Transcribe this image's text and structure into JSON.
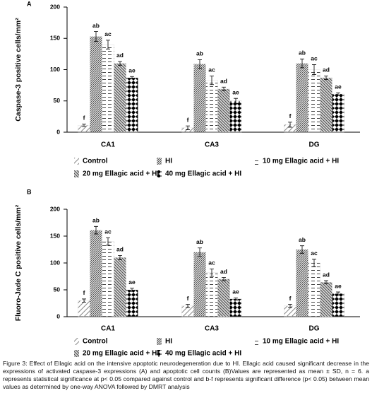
{
  "chart_data": [
    {
      "type": "bar",
      "panel": "A",
      "y_label": "Caspase-3 positive cells/mm²",
      "categories": [
        "CA1",
        "CA3",
        "DG"
      ],
      "ylim": [
        0,
        200
      ],
      "yticks": [
        0,
        50,
        100,
        150,
        200
      ],
      "series": [
        {
          "name": "Control",
          "color": "#888888",
          "pattern": "sparse-diagonal",
          "values": [
            11,
            7,
            12
          ],
          "errors": [
            2,
            3,
            4
          ],
          "labels": [
            "f",
            "f",
            "f"
          ]
        },
        {
          "name": "HI",
          "color": "#444444",
          "pattern": "dense-diagonal",
          "values": [
            153,
            109,
            110
          ],
          "errors": [
            8,
            7,
            7
          ],
          "labels": [
            "ab",
            "ab",
            "ab"
          ]
        },
        {
          "name": "10 mg Ellagic acid + HI",
          "color": "#444444",
          "pattern": "dashes",
          "values": [
            140,
            83,
            100
          ],
          "errors": [
            7,
            7,
            8
          ],
          "labels": [
            "ac",
            "ac",
            "ac"
          ]
        },
        {
          "name": "20 mg Ellagic acid + HI",
          "color": "#555555",
          "pattern": "wave",
          "values": [
            110,
            69,
            87
          ],
          "errors": [
            3,
            3,
            3
          ],
          "labels": [
            "ad",
            "ad",
            "ad"
          ]
        },
        {
          "name": "40 mg Ellagic acid + HI",
          "color": "#000000",
          "pattern": "diamond",
          "values": [
            87,
            50,
            61
          ],
          "errors": [
            2,
            4,
            2
          ],
          "labels": [
            "ae",
            "ae",
            "ae"
          ]
        }
      ]
    },
    {
      "type": "bar",
      "panel": "B",
      "y_label": "Fluoro-Jade  C positive  cells/mm²",
      "categories": [
        "CA1",
        "CA3",
        "DG"
      ],
      "ylim": [
        0,
        200
      ],
      "yticks": [
        0,
        50,
        100,
        150,
        200
      ],
      "series": [
        {
          "name": "Control",
          "color": "#888888",
          "pattern": "sparse-diagonal",
          "values": [
            30,
            20,
            20
          ],
          "errors": [
            3,
            3,
            3
          ],
          "labels": [
            "f",
            "f",
            "f"
          ]
        },
        {
          "name": "HI",
          "color": "#444444",
          "pattern": "dense-diagonal",
          "values": [
            161,
            120,
            125
          ],
          "errors": [
            7,
            8,
            7
          ],
          "labels": [
            "ab",
            "ab",
            "ab"
          ]
        },
        {
          "name": "10 mg Ellagic acid + HI",
          "color": "#444444",
          "pattern": "dashes",
          "values": [
            140,
            82,
            100
          ],
          "errors": [
            7,
            7,
            7
          ],
          "labels": [
            "ac",
            "ac",
            "ac"
          ]
        },
        {
          "name": "20 mg Ellagic acid + HI",
          "color": "#555555",
          "pattern": "wave",
          "values": [
            110,
            70,
            64
          ],
          "errors": [
            4,
            3,
            3
          ],
          "labels": [
            "ad",
            "ad",
            "ad"
          ]
        },
        {
          "name": "40 mg Ellagic acid + HI",
          "color": "#000000",
          "pattern": "diamond",
          "values": [
            50,
            33,
            43
          ],
          "errors": [
            3,
            2,
            3
          ],
          "labels": [
            "ae",
            "ae",
            "ae"
          ]
        }
      ]
    }
  ],
  "caption": "Figure 3:  Effect of Ellagic acid on the intensive apoptotic neurodegeneration due to HI. Ellagic acid caused significant decrease in the expressions of activated caspase-3 expressions (A) and apoptotic cell counts (B)Values are represented as mean ± SD, n = 6. a represents statistical significance at p< 0.05 compared against control and b-f represents significant difference (p< 0.05) between mean values as determined by one-way ANOVA followed by DMRT analysis"
}
